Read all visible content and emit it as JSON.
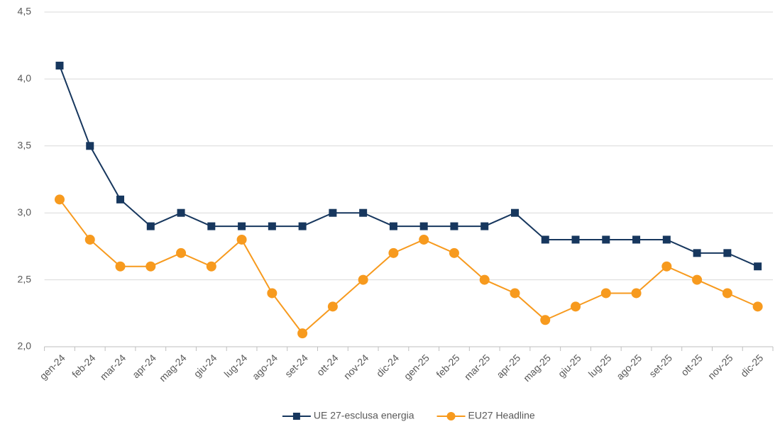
{
  "chart_data": {
    "type": "line",
    "categories": [
      "gen-24",
      "feb-24",
      "mar-24",
      "apr-24",
      "mag-24",
      "giu-24",
      "lug-24",
      "ago-24",
      "set-24",
      "ott-24",
      "nov-24",
      "dic-24",
      "gen-25",
      "feb-25",
      "mar-25",
      "apr-25",
      "mag-25",
      "giu-25",
      "lug-25",
      "ago-25",
      "set-25",
      "ott-25",
      "nov-25",
      "dic-25"
    ],
    "series": [
      {
        "name": "UE 27-esclusa energia",
        "color": "#17375e",
        "marker": "square",
        "values": [
          4.1,
          3.5,
          3.1,
          2.9,
          3.0,
          2.9,
          2.9,
          2.9,
          2.9,
          3.0,
          3.0,
          2.9,
          2.9,
          2.9,
          2.9,
          3.0,
          2.8,
          2.8,
          2.8,
          2.8,
          2.8,
          2.7,
          2.7,
          2.6
        ]
      },
      {
        "name": "EU27 Headline",
        "color": "#f79a1e",
        "marker": "circle",
        "values": [
          3.1,
          2.8,
          2.6,
          2.6,
          2.7,
          2.6,
          2.8,
          2.4,
          2.1,
          2.3,
          2.5,
          2.7,
          2.8,
          2.7,
          2.5,
          2.4,
          2.2,
          2.3,
          2.4,
          2.4,
          2.6,
          2.5,
          2.4,
          2.3
        ]
      }
    ],
    "ylim": [
      2,
      4.5
    ],
    "yticks": [
      {
        "value": 2,
        "label": "2,0"
      },
      {
        "value": 2.5,
        "label": "2,5"
      },
      {
        "value": 3,
        "label": "3,0"
      },
      {
        "value": 3.5,
        "label": "3,5"
      },
      {
        "value": 4,
        "label": "4,0"
      },
      {
        "value": 4.5,
        "label": "4,5"
      }
    ],
    "grid": true,
    "legend": "bottom"
  }
}
